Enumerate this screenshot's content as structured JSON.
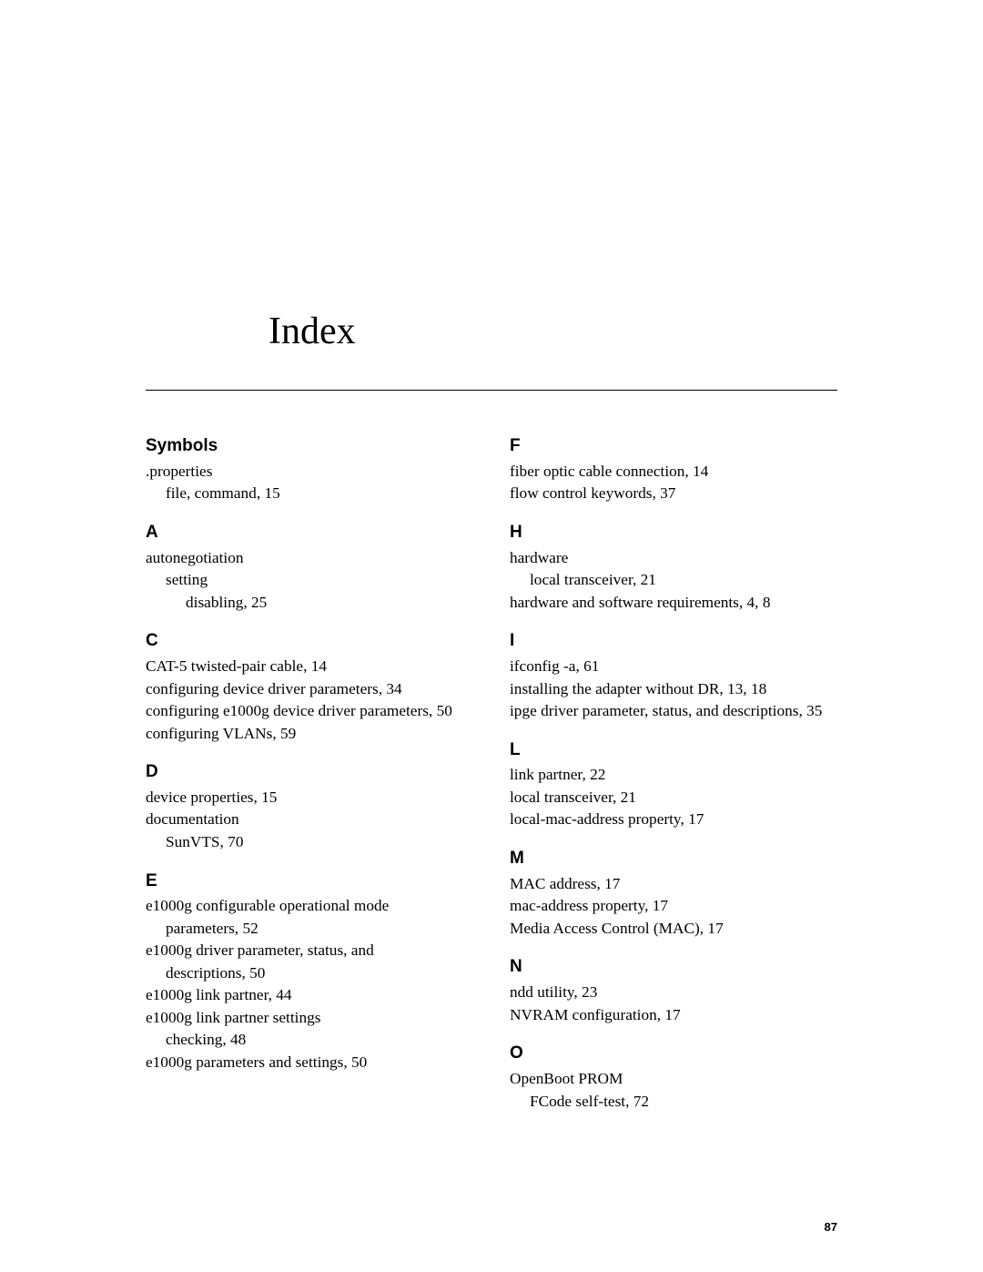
{
  "title": "Index",
  "page_number": "87",
  "left": {
    "symbols": {
      "head": "Symbols",
      "e1": ".properties",
      "e1a": "file, command,  15"
    },
    "a": {
      "head": "A",
      "e1": "autonegotiation",
      "e1a": "setting",
      "e1b": "disabling,  25"
    },
    "c": {
      "head": "C",
      "e1": "CAT-5 twisted-pair cable,  14",
      "e2": "configuring device driver parameters,  34",
      "e3": "configuring e1000g device driver parameters,  50",
      "e4": "configuring VLANs,  59"
    },
    "d": {
      "head": "D",
      "e1": "device properties,  15",
      "e2": "documentation",
      "e2a": "SunVTS,  70"
    },
    "e": {
      "head": "E",
      "e1": "e1000g configurable operational mode",
      "e1a": "parameters,  52",
      "e2": "e1000g driver parameter, status, and",
      "e2a": "descriptions,  50",
      "e3": "e1000g link partner,  44",
      "e4": "e1000g link partner settings",
      "e4a": "checking,  48",
      "e5": "e1000g parameters and settings,  50"
    }
  },
  "right": {
    "f": {
      "head": "F",
      "e1": "fiber optic cable connection,  14",
      "e2": "flow control keywords,  37"
    },
    "h": {
      "head": "H",
      "e1": "hardware",
      "e1a": "local transceiver,  21",
      "e2": "hardware and software requirements,  4, 8"
    },
    "i": {
      "head": "I",
      "e1": "ifconfig -a,  61",
      "e2": "installing the adapter without DR,  13, 18",
      "e3": "ipge driver parameter, status, and descriptions,  35"
    },
    "l": {
      "head": "L",
      "e1": "link partner,  22",
      "e2": "local transceiver,  21",
      "e3": "local-mac-address property,  17"
    },
    "m": {
      "head": "M",
      "e1": "MAC address,  17",
      "e2": "mac-address property,  17",
      "e3": "Media Access Control (MAC),  17"
    },
    "n": {
      "head": "N",
      "e1": "ndd utility,  23",
      "e2": "NVRAM configuration,  17"
    },
    "o": {
      "head": "O",
      "e1": "OpenBoot PROM",
      "e1a": "FCode self-test,  72"
    }
  }
}
